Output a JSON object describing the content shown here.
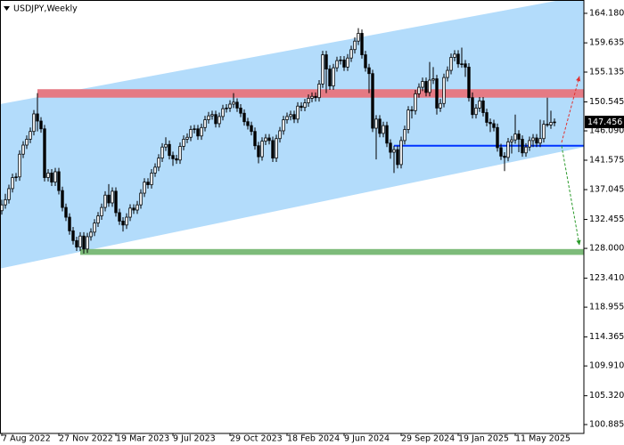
{
  "chart_data": {
    "type": "candlestick",
    "title": "USDJPY,Weekly",
    "categories": [
      "7 Aug 2022",
      null,
      null,
      null,
      null,
      null,
      null,
      null,
      null,
      null,
      null,
      null,
      null,
      null,
      null,
      null,
      "27 Nov 2022",
      null,
      null,
      null,
      null,
      null,
      null,
      null,
      null,
      null,
      null,
      null,
      null,
      null,
      null,
      null,
      "19 Mar 2023",
      null,
      null,
      null,
      null,
      null,
      null,
      null,
      null,
      null,
      null,
      null,
      null,
      null,
      null,
      null,
      "9 Jul 2023",
      null,
      null,
      null,
      null,
      null,
      null,
      null,
      null,
      null,
      null,
      null,
      null,
      null,
      null,
      null,
      "29 Oct 2023",
      null,
      null,
      null,
      null,
      null,
      null,
      null,
      null,
      null,
      null,
      null,
      null,
      null,
      null,
      null,
      "18 Feb 2024",
      null,
      null,
      null,
      null,
      null,
      null,
      null,
      null,
      null,
      null,
      null,
      null,
      null,
      null,
      null,
      "9 Jun 2024",
      null,
      null,
      null,
      null,
      null,
      null,
      null,
      null,
      null,
      null,
      null,
      null,
      null,
      null,
      null,
      "29 Sep 2024",
      null,
      null,
      null,
      null,
      null,
      null,
      null,
      null,
      null,
      null,
      null,
      null,
      null,
      null,
      null,
      "19 Jan 2025",
      null,
      null,
      null,
      null,
      null,
      null,
      null,
      null,
      null,
      null,
      null,
      null,
      null,
      null,
      null,
      "11 May 2025",
      null,
      null,
      null,
      null,
      null,
      null,
      null,
      null,
      null,
      null,
      null
    ],
    "ohlc": [
      [
        133.8,
        135.5,
        133.2,
        134.7
      ],
      [
        134.7,
        136.4,
        134.1,
        135.5
      ],
      [
        135.5,
        137.8,
        134.9,
        137.2
      ],
      [
        137.2,
        139.5,
        136.6,
        138.9
      ],
      [
        138.9,
        139.6,
        138.3,
        139.0
      ],
      [
        139.0,
        143.1,
        138.4,
        142.5
      ],
      [
        142.5,
        144.5,
        141.9,
        143.9
      ],
      [
        143.9,
        145.4,
        143.3,
        144.8
      ],
      [
        144.8,
        146.6,
        144.2,
        146.0
      ],
      [
        146.0,
        149.3,
        145.4,
        148.7
      ],
      [
        148.7,
        151.9,
        146.0,
        147.6
      ],
      [
        147.6,
        148.2,
        145.8,
        146.4
      ],
      [
        146.4,
        147.0,
        138.3,
        138.9
      ],
      [
        138.9,
        140.2,
        138.3,
        139.6
      ],
      [
        139.6,
        140.2,
        137.6,
        138.2
      ],
      [
        138.2,
        140.4,
        137.6,
        139.8
      ],
      [
        139.8,
        140.4,
        136.3,
        136.9
      ],
      [
        136.9,
        137.5,
        133.7,
        134.3
      ],
      [
        134.3,
        134.9,
        132.2,
        132.8
      ],
      [
        132.8,
        133.4,
        130.1,
        130.7
      ],
      [
        130.7,
        131.3,
        128.6,
        129.2
      ],
      [
        129.2,
        129.8,
        127.6,
        128.2
      ],
      [
        128.2,
        130.5,
        127.6,
        129.9
      ],
      [
        129.9,
        130.5,
        127.2,
        127.9
      ],
      [
        127.9,
        130.4,
        127.3,
        129.8
      ],
      [
        129.8,
        131.1,
        129.2,
        130.5
      ],
      [
        130.5,
        132.5,
        129.9,
        131.9
      ],
      [
        131.9,
        133.6,
        131.3,
        133.0
      ],
      [
        133.0,
        134.9,
        132.4,
        134.3
      ],
      [
        134.3,
        136.8,
        133.7,
        136.2
      ],
      [
        136.2,
        137.9,
        134.4,
        135.0
      ],
      [
        135.0,
        137.4,
        134.4,
        136.8
      ],
      [
        136.8,
        137.4,
        132.9,
        133.5
      ],
      [
        133.5,
        134.1,
        131.6,
        132.2
      ],
      [
        132.2,
        132.8,
        130.6,
        131.6
      ],
      [
        131.6,
        133.4,
        131.0,
        132.8
      ],
      [
        132.8,
        134.8,
        132.2,
        134.2
      ],
      [
        134.2,
        134.8,
        133.3,
        133.9
      ],
      [
        133.9,
        135.3,
        133.3,
        134.7
      ],
      [
        134.7,
        137.1,
        134.1,
        136.5
      ],
      [
        136.5,
        138.8,
        135.9,
        138.2
      ],
      [
        138.2,
        138.8,
        137.2,
        137.8
      ],
      [
        137.8,
        140.2,
        137.2,
        139.6
      ],
      [
        139.6,
        141.1,
        139.0,
        140.5
      ],
      [
        140.5,
        142.5,
        139.9,
        141.9
      ],
      [
        141.9,
        144.2,
        141.3,
        143.6
      ],
      [
        143.6,
        145.1,
        143.0,
        144.0
      ],
      [
        144.0,
        144.6,
        141.7,
        142.3
      ],
      [
        142.3,
        142.9,
        140.7,
        141.8
      ],
      [
        141.8,
        142.4,
        141.0,
        141.6
      ],
      [
        141.6,
        144.3,
        141.0,
        143.7
      ],
      [
        143.7,
        145.4,
        143.1,
        144.8
      ],
      [
        144.8,
        145.7,
        144.2,
        145.1
      ],
      [
        145.1,
        146.9,
        144.5,
        146.3
      ],
      [
        146.3,
        147.0,
        145.7,
        146.4
      ],
      [
        146.4,
        147.0,
        144.7,
        145.3
      ],
      [
        145.3,
        147.2,
        144.7,
        146.6
      ],
      [
        146.6,
        148.4,
        146.0,
        147.8
      ],
      [
        147.8,
        149.0,
        147.2,
        148.4
      ],
      [
        148.4,
        149.2,
        147.8,
        148.6
      ],
      [
        148.6,
        149.2,
        146.6,
        147.2
      ],
      [
        147.2,
        148.9,
        146.6,
        148.3
      ],
      [
        148.3,
        150.1,
        147.7,
        149.5
      ],
      [
        149.5,
        150.2,
        148.9,
        149.6
      ],
      [
        149.6,
        150.8,
        149.0,
        150.2
      ],
      [
        150.2,
        151.9,
        149.6,
        150.5
      ],
      [
        150.5,
        151.1,
        149.0,
        149.6
      ],
      [
        149.6,
        150.2,
        148.2,
        148.8
      ],
      [
        148.8,
        149.4,
        146.9,
        147.5
      ],
      [
        147.5,
        148.1,
        146.3,
        146.9
      ],
      [
        146.9,
        147.5,
        145.4,
        146.0
      ],
      [
        146.0,
        146.6,
        143.2,
        143.8
      ],
      [
        143.8,
        144.4,
        141.1,
        142.1
      ],
      [
        142.1,
        145.1,
        141.5,
        144.5
      ],
      [
        144.5,
        145.6,
        143.9,
        145.0
      ],
      [
        145.0,
        145.6,
        144.0,
        144.6
      ],
      [
        144.6,
        145.2,
        141.3,
        141.9
      ],
      [
        141.9,
        145.5,
        141.3,
        144.9
      ],
      [
        144.9,
        146.7,
        144.3,
        146.1
      ],
      [
        146.1,
        148.4,
        145.5,
        147.8
      ],
      [
        147.8,
        148.9,
        147.2,
        148.3
      ],
      [
        148.3,
        149.2,
        147.7,
        148.6
      ],
      [
        148.6,
        149.2,
        147.3,
        147.9
      ],
      [
        147.9,
        150.5,
        147.3,
        149.9
      ],
      [
        149.9,
        150.5,
        149.1,
        149.7
      ],
      [
        149.7,
        151.0,
        149.1,
        150.4
      ],
      [
        150.4,
        151.7,
        149.8,
        151.1
      ],
      [
        151.1,
        152.0,
        150.5,
        151.4
      ],
      [
        151.4,
        152.0,
        150.6,
        151.2
      ],
      [
        151.2,
        153.9,
        150.6,
        153.3
      ],
      [
        153.3,
        158.4,
        152.7,
        157.8
      ],
      [
        157.8,
        158.4,
        151.9,
        155.6
      ],
      [
        155.6,
        156.2,
        152.4,
        153.0
      ],
      [
        153.0,
        156.4,
        152.4,
        155.8
      ],
      [
        155.8,
        157.5,
        155.2,
        156.9
      ],
      [
        156.9,
        157.6,
        156.3,
        157.0
      ],
      [
        157.0,
        157.6,
        155.3,
        155.9
      ],
      [
        155.9,
        157.9,
        155.3,
        157.3
      ],
      [
        157.3,
        159.2,
        156.7,
        158.6
      ],
      [
        158.6,
        160.5,
        158.0,
        159.9
      ],
      [
        159.9,
        161.9,
        159.3,
        161.1
      ],
      [
        161.1,
        161.7,
        157.2,
        157.8
      ],
      [
        157.8,
        158.4,
        155.2,
        155.8
      ],
      [
        155.8,
        156.4,
        151.9,
        154.9
      ],
      [
        154.9,
        155.5,
        145.9,
        146.5
      ],
      [
        146.5,
        148.5,
        141.7,
        147.9
      ],
      [
        147.9,
        148.5,
        145.1,
        145.7
      ],
      [
        145.7,
        147.5,
        145.1,
        146.9
      ],
      [
        146.9,
        147.5,
        143.6,
        144.2
      ],
      [
        144.2,
        144.8,
        141.8,
        142.8
      ],
      [
        142.8,
        143.8,
        139.6,
        143.2
      ],
      [
        143.2,
        143.8,
        140.3,
        140.9
      ],
      [
        140.9,
        145.2,
        140.3,
        144.6
      ],
      [
        144.6,
        146.9,
        144.0,
        146.3
      ],
      [
        146.3,
        149.9,
        145.7,
        149.3
      ],
      [
        149.3,
        149.9,
        148.0,
        149.2
      ],
      [
        149.2,
        152.4,
        148.6,
        151.8
      ],
      [
        151.8,
        153.4,
        151.2,
        152.8
      ],
      [
        152.8,
        154.3,
        152.2,
        153.7
      ],
      [
        153.7,
        154.3,
        151.4,
        152.0
      ],
      [
        152.0,
        156.7,
        151.4,
        153.9
      ],
      [
        153.9,
        155.9,
        153.3,
        154.1
      ],
      [
        154.1,
        154.7,
        148.6,
        149.6
      ],
      [
        149.6,
        151.0,
        149.0,
        150.3
      ],
      [
        150.3,
        154.9,
        149.7,
        154.3
      ],
      [
        154.3,
        156.0,
        153.7,
        155.4
      ],
      [
        155.4,
        158.0,
        154.8,
        157.4
      ],
      [
        157.4,
        158.5,
        156.8,
        157.9
      ],
      [
        157.9,
        158.5,
        155.8,
        156.4
      ],
      [
        156.4,
        158.9,
        155.8,
        156.4
      ],
      [
        156.4,
        157.0,
        154.4,
        155.9
      ],
      [
        155.9,
        156.5,
        150.6,
        151.2
      ],
      [
        151.2,
        152.0,
        148.0,
        148.6
      ],
      [
        148.6,
        150.2,
        148.0,
        149.6
      ],
      [
        149.6,
        151.3,
        149.0,
        150.7
      ],
      [
        150.7,
        151.3,
        148.3,
        148.9
      ],
      [
        148.9,
        149.5,
        146.8,
        147.4
      ],
      [
        147.4,
        148.0,
        145.9,
        147.2
      ],
      [
        147.2,
        147.8,
        146.0,
        146.6
      ],
      [
        146.6,
        147.2,
        142.9,
        143.5
      ],
      [
        143.5,
        144.1,
        141.6,
        142.2
      ],
      [
        142.2,
        142.8,
        139.9,
        142.0
      ],
      [
        142.0,
        145.0,
        141.4,
        144.4
      ],
      [
        144.4,
        145.3,
        142.6,
        144.7
      ],
      [
        144.7,
        148.6,
        144.1,
        145.6
      ],
      [
        145.6,
        146.2,
        142.8,
        144.8
      ],
      [
        144.8,
        145.4,
        142.1,
        142.7
      ],
      [
        142.7,
        144.2,
        142.1,
        143.6
      ],
      [
        143.6,
        145.2,
        143.0,
        144.6
      ],
      [
        144.6,
        145.6,
        143.6,
        145.0
      ],
      [
        145.0,
        145.6,
        143.6,
        144.2
      ],
      [
        144.2,
        147.8,
        143.6,
        144.9
      ],
      [
        144.9,
        147.7,
        144.3,
        147.1
      ],
      [
        147.1,
        151.2,
        146.7,
        147.0
      ],
      [
        147.0,
        149.2,
        146.4,
        147.4
      ],
      [
        147.4,
        148.0,
        146.8,
        147.456
      ]
    ],
    "up_color": "#ffffff",
    "down_color": "#000000",
    "ylim": [
      99.52,
      166.23
    ],
    "yticks": [
      {
        "value": 164.18,
        "label": "164.180"
      },
      159.635,
      155.135,
      150.545,
      {
        "value": 146.09,
        "label": "146.090"
      },
      141.575,
      137.045,
      132.455,
      {
        "value": 128,
        "label": "128.000"
      },
      {
        "value": 123.41,
        "label": "123.410"
      },
      118.955,
      114.365,
      {
        "value": 109.91,
        "label": "109.910"
      },
      {
        "value": 105.32,
        "label": "105.320"
      },
      100.885
    ],
    "grid": false,
    "drawings": {
      "channel": {
        "color": "#b3dcfb",
        "upper": [
          [
            -0.5,
            150.2
          ],
          [
            163.25,
            166.9
          ]
        ],
        "lower": [
          [
            -0.5,
            124.9
          ],
          [
            163.25,
            143.6
          ]
        ]
      },
      "zones": [
        {
          "color": "#e57a84",
          "from": 10,
          "top": 152.5,
          "bottom": 151.2
        },
        {
          "color": "#7dbb7a",
          "from": 22,
          "top": 127.9,
          "bottom": 127.0
        }
      ],
      "levels": [
        {
          "color": "#0033ff",
          "from": 110,
          "value": 143.8
        }
      ],
      "arrows": [
        {
          "color": "#e03030",
          "from": [
            157,
            144.3
          ],
          "to": [
            162,
            154.5
          ]
        },
        {
          "color": "#2a9a2a",
          "from": [
            157,
            143.8
          ],
          "to": [
            162,
            128.5
          ]
        }
      ]
    }
  }
}
